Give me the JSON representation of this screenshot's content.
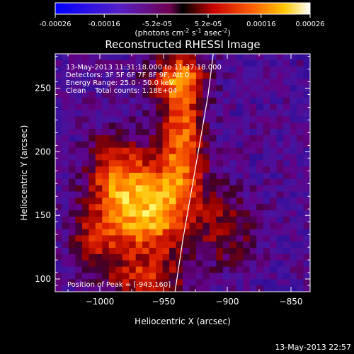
{
  "colorbar": {
    "ticks": [
      "-0.00026",
      "-0.00016",
      "-5.2e-05",
      "5.2e-05",
      "0.00016",
      "0.00026"
    ],
    "tick_values": [
      -0.00026,
      -0.00016,
      -5.2e-05,
      5.2e-05,
      0.00016,
      0.00026
    ],
    "range": [
      -0.00026,
      0.00026
    ],
    "units_text": "(photons cm",
    "units_exp1": "-2",
    "units_mid": " s",
    "units_exp2": "-1",
    "units_end": " asec",
    "units_exp3": "-2",
    "units_close": ")"
  },
  "chart_data": {
    "type": "heatmap",
    "title": "Reconstructed RHESSI Image",
    "xlabel": "Heliocentric X (arcsec)",
    "ylabel": "Heliocentric Y (arcsec)",
    "xlim": [
      -1035,
      -835
    ],
    "ylim": [
      90,
      277
    ],
    "xticks": [
      -1000,
      -950,
      -900,
      -850
    ],
    "xtick_labels": [
      "−1000",
      "−950",
      "−900",
      "−850"
    ],
    "yticks": [
      100,
      150,
      200,
      250
    ],
    "ytick_labels": [
      "100",
      "150",
      "200",
      "250"
    ],
    "annotations": [
      "13-May-2013 11:31:18.000 to 11:37:18.000",
      "Detectors: 3F 5F 6F 7F 8F 9F, Att 0",
      "Energy Range: 25.0 - 50.0 keV",
      "Clean    Total counts: 1.18E+04"
    ],
    "peak_label": "Position of Peak = [-943,160]",
    "peak": [
      -943,
      160
    ],
    "limb_curve": [
      [
        -941,
        90
      ],
      [
        -935,
        130
      ],
      [
        -928,
        170
      ],
      [
        -921,
        210
      ],
      [
        -915,
        245
      ],
      [
        -911,
        277
      ]
    ],
    "sources": [
      {
        "x": -963,
        "y": 155,
        "sx": 24,
        "sy": 28,
        "amp": 1.0
      },
      {
        "x": -935,
        "y": 215,
        "sx": 12,
        "sy": 38,
        "amp": 0.7
      },
      {
        "x": -940,
        "y": 258,
        "sx": 16,
        "sy": 12,
        "amp": 0.55
      },
      {
        "x": -990,
        "y": 185,
        "sx": 14,
        "sy": 22,
        "amp": 0.45
      },
      {
        "x": -1005,
        "y": 130,
        "sx": 14,
        "sy": 18,
        "amp": 0.4
      },
      {
        "x": -900,
        "y": 140,
        "sx": 16,
        "sy": 22,
        "amp": 0.35
      },
      {
        "x": -965,
        "y": 100,
        "sx": 22,
        "sy": 10,
        "amp": 0.45
      }
    ]
  },
  "footer": {
    "timestamp": "13-May-2013 22:57"
  }
}
